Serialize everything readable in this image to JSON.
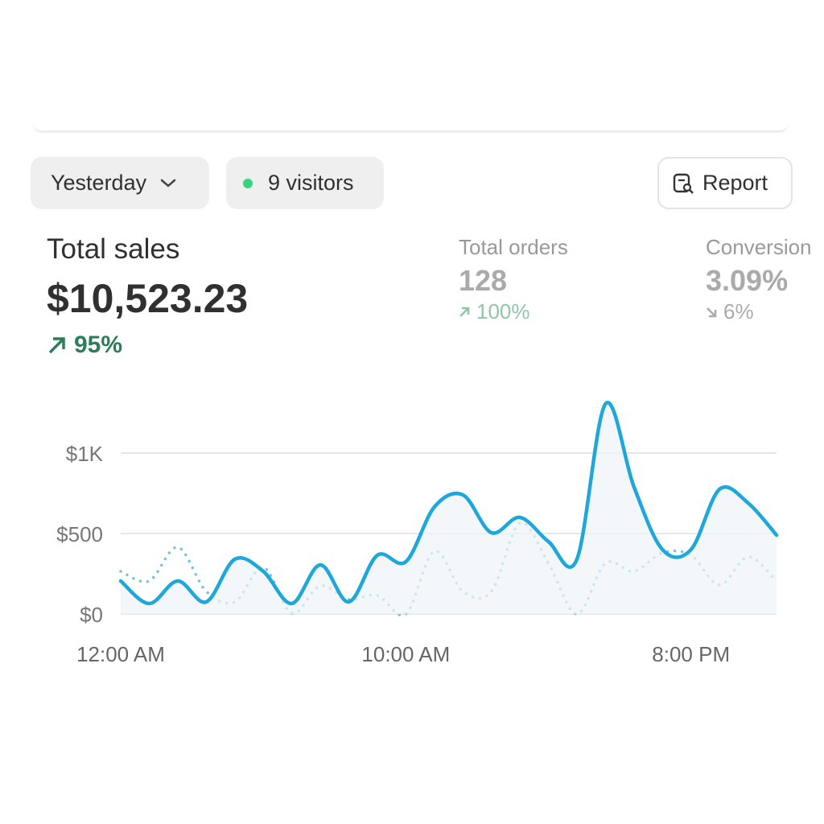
{
  "toolbar": {
    "period": "Yesterday",
    "visitors": "9 visitors",
    "report": "Report"
  },
  "metrics": [
    {
      "label": "Total sales",
      "value": "$10,523.23",
      "change": "95%"
    },
    {
      "label": "Total orders",
      "value": "128",
      "change": "100%"
    },
    {
      "label": "Conversion",
      "value": "3.09%",
      "change": "6%"
    }
  ],
  "chart_data": {
    "type": "line",
    "categories": [
      "12:00 AM",
      null,
      null,
      null,
      null,
      null,
      null,
      null,
      null,
      null,
      "10:00 AM",
      null,
      null,
      null,
      null,
      null,
      null,
      null,
      null,
      null,
      "8:00 PM",
      null,
      null,
      null
    ],
    "series": [
      {
        "color": "#1ea7db",
        "style": "solid",
        "values": [
          205,
          65,
          205,
          75,
          340,
          265,
          65,
          305,
          75,
          365,
          325,
          665,
          740,
          505,
          600,
          450,
          340,
          1305,
          790,
          400,
          400,
          775,
          690,
          490
        ]
      },
      {
        "color": "#7cc3d9",
        "style": "dotted",
        "values": [
          265,
          205,
          415,
          140,
          75,
          290,
          5,
          175,
          90,
          115,
          0,
          390,
          140,
          140,
          565,
          315,
          0,
          315,
          265,
          380,
          365,
          180,
          355,
          205
        ]
      }
    ],
    "ylim": [
      0,
      1400
    ],
    "yticks": [
      {
        "value": 0,
        "label": "$0"
      },
      {
        "value": 500,
        "label": "$500"
      },
      {
        "value": 1000,
        "label": "$1K"
      }
    ],
    "grid": true
  }
}
